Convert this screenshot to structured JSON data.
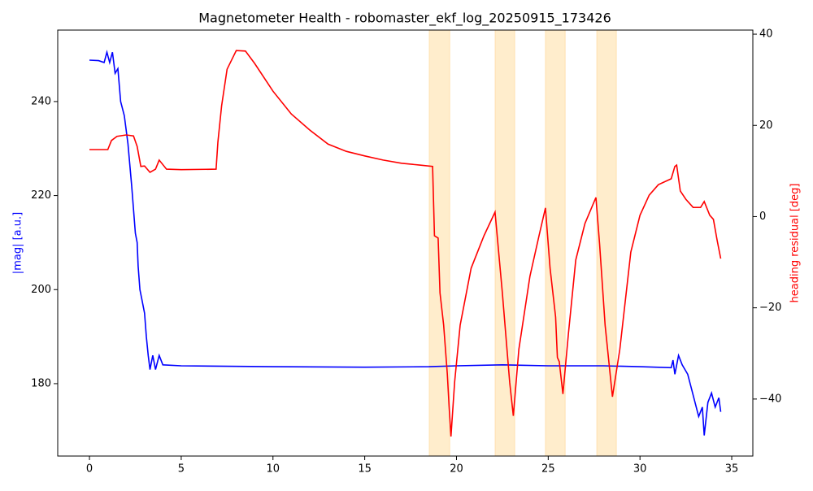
{
  "chart_data": {
    "type": "line",
    "title": "Magnetometer Health - robomaster_ekf_log_20250915_173426",
    "ylabel": "|mag| [a.u.]",
    "y2label": "heading residual [deg]",
    "xlim": [
      -1.73,
      36.15
    ],
    "xticks": [
      0,
      5,
      10,
      15,
      20,
      25,
      30,
      35
    ],
    "ylim": [
      164.6,
      255.2
    ],
    "yticks": [
      180,
      200,
      220,
      240
    ],
    "y2lim": [
      -52.5,
      40.9
    ],
    "y2ticks": [
      {
        "value": -40,
        "label": "−40"
      },
      {
        "value": -20,
        "label": "−20"
      },
      0,
      20,
      40
    ],
    "spans": [
      [
        18.52,
        19.63
      ],
      [
        22.11,
        23.17
      ],
      [
        24.85,
        25.92
      ],
      [
        27.65,
        28.71
      ]
    ],
    "span_color": "#ffedcc",
    "series": [
      {
        "color": "#0000ff",
        "axis": "y",
        "x": [
          0,
          0.5,
          0.8,
          0.95,
          1.1,
          1.25,
          1.4,
          1.55,
          1.7,
          1.9,
          2.1,
          2.3,
          2.5,
          2.6,
          2.65,
          2.75,
          2.85,
          3.0,
          3.1,
          3.2,
          3.3,
          3.45,
          3.6,
          3.8,
          4.0,
          5,
          10,
          15,
          18.5,
          20,
          22.5,
          25,
          28,
          30,
          31.7,
          31.8,
          31.9,
          32.1,
          32.3,
          32.6,
          32.8,
          33.0,
          33.2,
          33.4,
          33.5,
          33.7,
          33.9,
          34.1,
          34.3,
          34.4
        ],
        "values": [
          248.8,
          248.7,
          248.3,
          250.5,
          248.3,
          250.5,
          246,
          247,
          240,
          237,
          231,
          222,
          212,
          210,
          205,
          200,
          198,
          195,
          190,
          186,
          183,
          186,
          183,
          186,
          184,
          183.8,
          183.6,
          183.5,
          183.6,
          183.8,
          184,
          183.8,
          183.8,
          183.6,
          183.4,
          185,
          182,
          186,
          184,
          182,
          179,
          176,
          173,
          175,
          169,
          176,
          178,
          175,
          177,
          174
        ]
      },
      {
        "color": "#ff0000",
        "axis": "y2",
        "x": [
          0,
          1.0,
          1.2,
          1.5,
          2.0,
          2.4,
          2.6,
          2.8,
          3.0,
          3.3,
          3.6,
          3.8,
          4.2,
          5,
          6.9,
          7.0,
          7.2,
          7.5,
          8.0,
          8.5,
          9,
          10,
          11,
          12,
          13,
          14,
          15,
          16,
          17,
          18,
          18.7,
          18.8,
          19.0,
          19.1,
          19.3,
          19.5,
          19.6,
          19.7,
          19.9,
          20.2,
          20.8,
          21.5,
          22.1,
          22.5,
          22.9,
          23.1,
          23.4,
          24.0,
          24.5,
          24.85,
          25.1,
          25.4,
          25.5,
          25.6,
          25.8,
          26.1,
          26.5,
          27.0,
          27.6,
          27.8,
          28.1,
          28.5,
          28.9,
          29.5,
          30,
          30.5,
          31,
          31.7,
          31.9,
          32.0,
          32.2,
          32.5,
          32.9,
          33.3,
          33.5,
          33.8,
          34.0,
          34.2,
          34.4
        ],
        "values": [
          14.7,
          14.7,
          16.7,
          17.6,
          17.9,
          17.7,
          15.4,
          11,
          11.1,
          9.7,
          10.4,
          12.4,
          10.4,
          10.3,
          10.4,
          16.3,
          24.3,
          32.3,
          36.4,
          36.3,
          33.6,
          27.5,
          22.5,
          19,
          15.9,
          14.3,
          13.3,
          12.4,
          11.7,
          11.3,
          11,
          -4.2,
          -4.7,
          -16.7,
          -23.8,
          -34.5,
          -41.6,
          -48.2,
          -36.3,
          -23.8,
          -11.3,
          -4.2,
          1,
          -16.7,
          -36.3,
          -43.7,
          -29.1,
          -13.1,
          -4.2,
          1.9,
          -11.3,
          -22,
          -30.9,
          -31.8,
          -38.9,
          -25.6,
          -9.5,
          -1.5,
          4.2,
          -6,
          -23.8,
          -39.5,
          -29.1,
          -7.8,
          0.3,
          4.7,
          7,
          8.3,
          11,
          11.3,
          5.6,
          3.8,
          2,
          2,
          3.3,
          0.3,
          -0.6,
          -5.1,
          -9.2
        ]
      }
    ]
  }
}
